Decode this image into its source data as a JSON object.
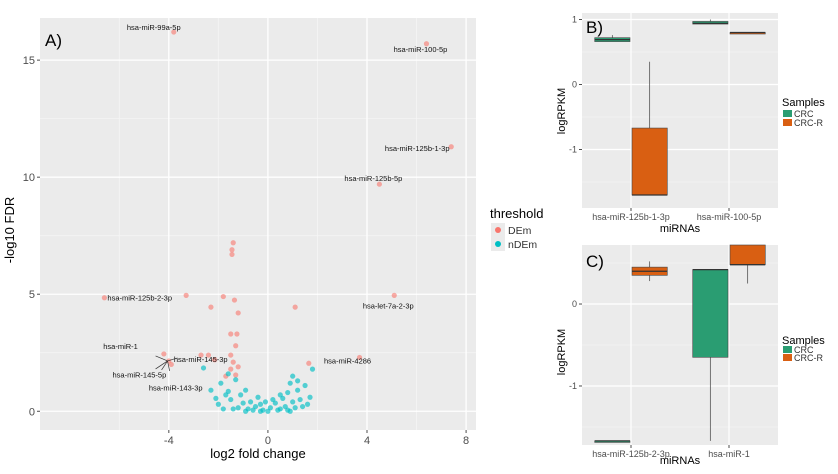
{
  "chart_data": [
    {
      "panel": "A)",
      "type": "scatter",
      "xlabel": "log2 fold change",
      "ylabel": "-log10 FDR",
      "xlim": [
        -9.2,
        8.4
      ],
      "ylim": [
        -0.8,
        16.8
      ],
      "xticks": [
        -4,
        0,
        4,
        8
      ],
      "yticks": [
        0,
        5,
        10,
        15
      ],
      "grid": true,
      "legend": {
        "title": "threshold",
        "position": "right",
        "entries": [
          {
            "label": "DEm",
            "color": "#F8766D"
          },
          {
            "label": "nDEm",
            "color": "#00BFC4"
          }
        ]
      },
      "series": [
        {
          "name": "DEm",
          "color": "#F8766D",
          "points": [
            [
              -3.8,
              16.2
            ],
            [
              6.4,
              15.7
            ],
            [
              7.4,
              11.3
            ],
            [
              4.5,
              9.7
            ],
            [
              -6.6,
              4.85
            ],
            [
              -3.3,
              4.95
            ],
            [
              5.1,
              4.95
            ],
            [
              -4.2,
              2.45
            ],
            [
              -4.0,
              2.15
            ],
            [
              -3.9,
              2.0
            ],
            [
              -2.7,
              2.4
            ],
            [
              3.7,
              2.3
            ],
            [
              -1.4,
              7.2
            ],
            [
              -1.45,
              6.9
            ],
            [
              -1.45,
              6.7
            ],
            [
              -1.8,
              4.9
            ],
            [
              -1.35,
              4.75
            ],
            [
              -2.3,
              4.45
            ],
            [
              -1.2,
              4.2
            ],
            [
              1.1,
              4.45
            ],
            [
              -1.25,
              3.3
            ],
            [
              -1.5,
              3.3
            ],
            [
              -1.3,
              2.8
            ],
            [
              -1.5,
              2.4
            ],
            [
              -1.4,
              2.1
            ],
            [
              -2.4,
              2.4
            ],
            [
              -2.15,
              2.2
            ],
            [
              1.65,
              2.05
            ],
            [
              -1.5,
              1.8
            ],
            [
              -1.3,
              1.55
            ],
            [
              -1.7,
              1.5
            ],
            [
              -1.2,
              1.9
            ]
          ]
        },
        {
          "name": "nDEm",
          "color": "#00BFC4",
          "points": [
            [
              -2.6,
              1.85
            ],
            [
              -1.9,
              1.2
            ],
            [
              -1.6,
              0.85
            ],
            [
              -1.3,
              1.35
            ],
            [
              -1.1,
              0.7
            ],
            [
              -2.0,
              0.3
            ],
            [
              -2.1,
              0.55
            ],
            [
              -1.8,
              0.1
            ],
            [
              -1.5,
              0.5
            ],
            [
              -0.9,
              0.9
            ],
            [
              -0.7,
              0.4
            ],
            [
              -0.5,
              0.2
            ],
            [
              -0.4,
              0.6
            ],
            [
              -0.3,
              0.3
            ],
            [
              -0.2,
              0.05
            ],
            [
              0,
              0
            ],
            [
              0.1,
              0.15
            ],
            [
              0.3,
              0.35
            ],
            [
              0.5,
              0.1
            ],
            [
              0.6,
              0.55
            ],
            [
              0.8,
              0.8
            ],
            [
              0.9,
              1.2
            ],
            [
              1.0,
              1.5
            ],
            [
              1.2,
              0.9
            ],
            [
              1.3,
              0.5
            ],
            [
              1.5,
              1.1
            ],
            [
              1.7,
              0.6
            ],
            [
              1.8,
              1.8
            ],
            [
              1.4,
              0.2
            ],
            [
              1.1,
              0.15
            ],
            [
              -1.2,
              0.15
            ],
            [
              -0.8,
              0.1
            ],
            [
              -1.0,
              0.35
            ],
            [
              -0.6,
              0.05
            ],
            [
              0.4,
              0.05
            ],
            [
              0.7,
              0.2
            ],
            [
              -1.4,
              0.1
            ],
            [
              0.2,
              0.5
            ],
            [
              -0.1,
              0.4
            ],
            [
              1.6,
              0.3
            ],
            [
              -1.7,
              0.7
            ],
            [
              0.9,
              0.0
            ],
            [
              -0.3,
              0.0
            ],
            [
              0.5,
              0.7
            ],
            [
              1.2,
              1.3
            ],
            [
              -2.3,
              0.9
            ],
            [
              -1.6,
              1.6
            ],
            [
              1.0,
              0.4
            ],
            [
              -0.9,
              0.0
            ],
            [
              0.8,
              0.05
            ]
          ]
        }
      ],
      "annotations": [
        {
          "text": "hsa-miR-99a-5p",
          "x": -3.8,
          "y": 16.2
        },
        {
          "text": "hsa-miR-100-5p",
          "x": 6.4,
          "y": 15.7
        },
        {
          "text": "hsa-miR-125b-1-3p",
          "x": 7.4,
          "y": 11.3
        },
        {
          "text": "hsa-miR-125b-5p",
          "x": 4.5,
          "y": 9.7
        },
        {
          "text": "hsa-miR-125b-2-3p",
          "x": -6.6,
          "y": 4.85
        },
        {
          "text": "hsa-let-7a-2-3p",
          "x": 5.1,
          "y": 4.95
        },
        {
          "text": "hsa-miR-1",
          "x": -4.2,
          "y": 2.45
        },
        {
          "text": "hsa-miR-145-3p",
          "x": -4.0,
          "y": 2.15
        },
        {
          "text": "hsa-miR-145-5p",
          "x": -3.9,
          "y": 2.0
        },
        {
          "text": "hsa-miR-143-3p",
          "x": -4.0,
          "y": 2.0
        },
        {
          "text": "hsa-miR-4286",
          "x": 3.7,
          "y": 2.3
        }
      ]
    },
    {
      "panel": "B)",
      "type": "boxplot",
      "xlabel": "miRNAs",
      "ylabel": "logRPKM",
      "ylim": [
        -1.9,
        1.1
      ],
      "yticks": [
        -1,
        0,
        1
      ],
      "categories": [
        "hsa-miR-125b-1-3p",
        "hsa-miR-100-5p"
      ],
      "legend": {
        "title": "Samples",
        "position": "right",
        "entries": [
          {
            "label": "CRC",
            "color": "#2A9D72"
          },
          {
            "label": "CRC-R",
            "color": "#D95F12"
          }
        ]
      },
      "series": [
        {
          "name": "CRC",
          "color": "#2A9D72",
          "boxes": [
            {
              "min": 0.66,
              "q1": 0.66,
              "median": 0.69,
              "q3": 0.72,
              "max": 0.76
            },
            {
              "min": 0.93,
              "q1": 0.93,
              "median": 0.94,
              "q3": 0.97,
              "max": 1.0
            }
          ]
        },
        {
          "name": "CRC-R",
          "color": "#D95F12",
          "boxes": [
            {
              "min": -1.7,
              "q1": -1.7,
              "median": -1.7,
              "q3": -0.67,
              "max": 0.35
            },
            {
              "min": 0.8,
              "q1": 0.8,
              "median": 0.8,
              "q3": 0.8,
              "max": 0.8
            }
          ]
        }
      ]
    },
    {
      "panel": "C)",
      "type": "boxplot",
      "xlabel": "miRNAs",
      "ylabel": "logRPKM",
      "ylim": [
        -1.72,
        0.72
      ],
      "yticks": [
        -1,
        0
      ],
      "categories": [
        "hsa-miR-125b-2-3p",
        "hsa-miR-1"
      ],
      "legend": {
        "title": "Samples",
        "position": "right",
        "entries": [
          {
            "label": "CRC",
            "color": "#2A9D72"
          },
          {
            "label": "CRC-R",
            "color": "#D95F12"
          }
        ]
      },
      "series": [
        {
          "name": "CRC",
          "color": "#2A9D72",
          "boxes": [
            {
              "min": -1.67,
              "q1": -1.67,
              "median": -1.67,
              "q3": -1.67,
              "max": -1.67
            },
            {
              "min": -1.67,
              "q1": -0.65,
              "median": 0.42,
              "q3": 0.42,
              "max": 0.42
            }
          ]
        },
        {
          "name": "CRC-R",
          "color": "#D95F12",
          "boxes": [
            {
              "min": 0.28,
              "q1": 0.35,
              "median": 0.4,
              "q3": 0.45,
              "max": 0.52
            },
            {
              "min": 0.25,
              "q1": 0.48,
              "median": 0.48,
              "q3": 0.72,
              "max": 0.72
            }
          ]
        }
      ]
    }
  ]
}
